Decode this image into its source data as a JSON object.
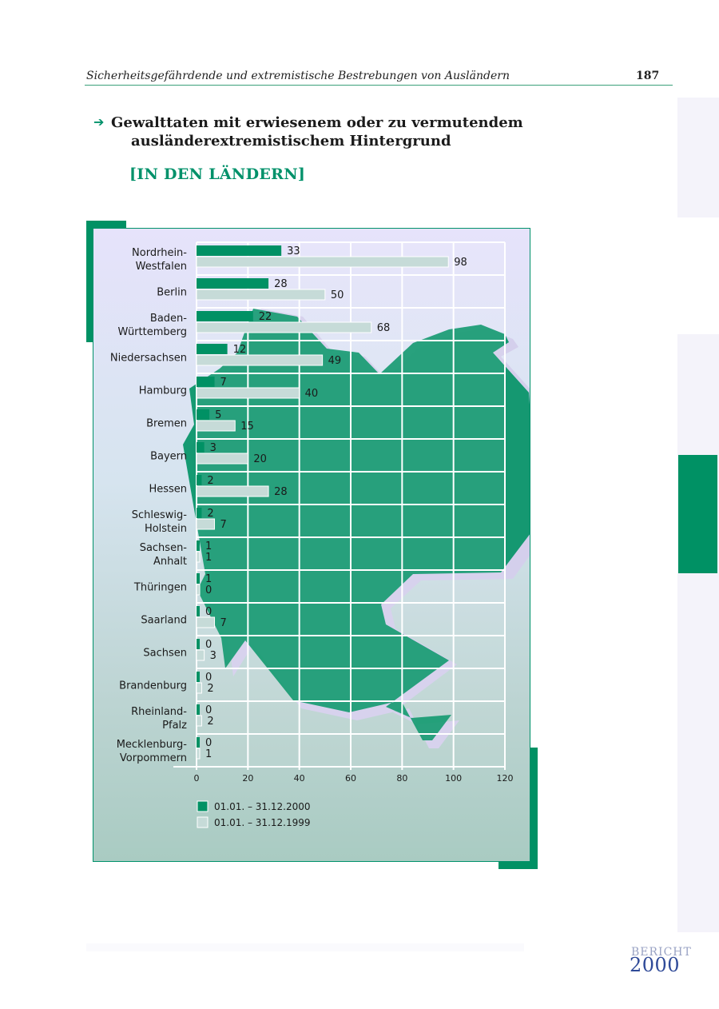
{
  "header": {
    "title": "Sicherheitsgefährdende und extremistische Bestrebungen von Ausländern",
    "page_number": "187"
  },
  "section": {
    "title_line1": "Gewalttaten mit erwiesenem oder zu vermutendem",
    "title_line2": "ausländerextremistischem Hintergrund",
    "subtitle": "[IN DEN LÄNDERN]"
  },
  "branding": {
    "word": "BERICHT",
    "year": "2000"
  },
  "colors": {
    "accent": "#009164",
    "series_2000": "#009164",
    "series_1999": "#c6dbd8",
    "map_fill": "#009164"
  },
  "chart_data": {
    "type": "bar",
    "orientation": "horizontal",
    "categories": [
      [
        "Nordrhein-",
        "Westfalen"
      ],
      [
        "Berlin"
      ],
      [
        "Baden-",
        "Württemberg"
      ],
      [
        "Niedersachsen"
      ],
      [
        "Hamburg"
      ],
      [
        "Bremen"
      ],
      [
        "Bayern"
      ],
      [
        "Hessen"
      ],
      [
        "Schleswig-",
        "Holstein"
      ],
      [
        "Sachsen-",
        "Anhalt"
      ],
      [
        "Thüringen"
      ],
      [
        "Saarland"
      ],
      [
        "Sachsen"
      ],
      [
        "Brandenburg"
      ],
      [
        "Rheinland-",
        "Pfalz"
      ],
      [
        "Mecklenburg-",
        "Vorpommern"
      ]
    ],
    "series": [
      {
        "name": "01.01. – 31.12.2000",
        "values": [
          33,
          28,
          22,
          12,
          7,
          5,
          3,
          2,
          2,
          1,
          1,
          0,
          0,
          0,
          0,
          0
        ]
      },
      {
        "name": "01.01. – 31.12.1999",
        "values": [
          98,
          50,
          68,
          49,
          40,
          15,
          20,
          28,
          7,
          1,
          0,
          7,
          3,
          2,
          2,
          1
        ]
      }
    ],
    "xlim": [
      0,
      120
    ],
    "xticks": [
      0,
      20,
      40,
      60,
      80,
      100,
      120
    ],
    "grid": true,
    "legend_position": "bottom"
  }
}
